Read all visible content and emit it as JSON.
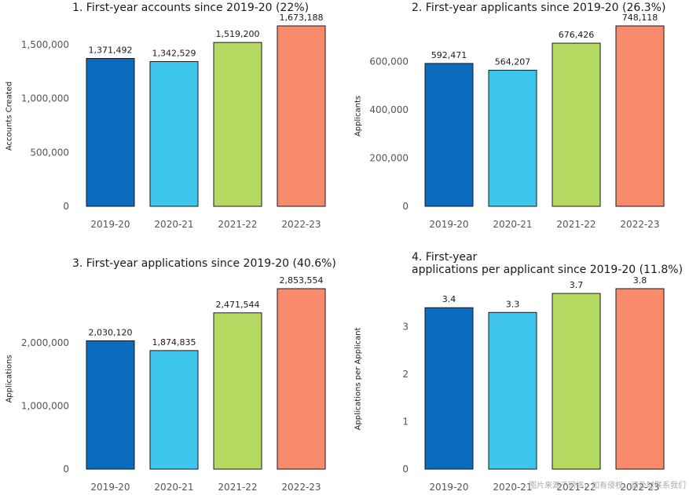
{
  "colors": [
    "#0b6bbf",
    "#3ec5ec",
    "#b5da62",
    "#f98a6c"
  ],
  "watermark": "图片来源于网络，如有侵权，请及时联系我们",
  "chart_data": [
    {
      "type": "bar",
      "title": "1. First-year accounts since 2019-20 (22%)",
      "ylabel": "Accounts Created",
      "categories": [
        "2019-20",
        "2020-21",
        "2021-22",
        "2022-23"
      ],
      "values": [
        1371492,
        1342529,
        1519200,
        1673188
      ],
      "value_labels": [
        "1,371,492",
        "1,342,529",
        "1,519,200",
        "1,673,188"
      ],
      "yticks": [
        0,
        500000,
        1000000,
        1500000
      ],
      "ytick_labels": [
        "0",
        "500,000",
        "1,000,000",
        "1,500,000"
      ],
      "ylim": [
        0,
        1673188
      ]
    },
    {
      "type": "bar",
      "title": "2. First-year applicants since 2019-20 (26.3%)",
      "ylabel": "Applicants",
      "categories": [
        "2019-20",
        "2020-21",
        "2021-22",
        "2022-23"
      ],
      "values": [
        592471,
        564207,
        676426,
        748118
      ],
      "value_labels": [
        "592,471",
        "564,207",
        "676,426",
        "748,118"
      ],
      "yticks": [
        0,
        200000,
        400000,
        600000
      ],
      "ytick_labels": [
        "0",
        "200,000",
        "400,000",
        "600,000"
      ],
      "ylim": [
        0,
        748118
      ]
    },
    {
      "type": "bar",
      "title": "3. First-year applications since 2019-20 (40.6%)",
      "ylabel": "Applications",
      "categories": [
        "2019-20",
        "2020-21",
        "2021-22",
        "2022-23"
      ],
      "values": [
        2030120,
        1874835,
        2471544,
        2853554
      ],
      "value_labels": [
        "2,030,120",
        "1,874,835",
        "2,471,544",
        "2,853,554"
      ],
      "yticks": [
        0,
        1000000,
        2000000
      ],
      "ytick_labels": [
        "0",
        "1,000,000",
        "2,000,000"
      ],
      "ylim": [
        0,
        2853554
      ]
    },
    {
      "type": "bar",
      "title": "4. First-year\napplications per applicant since 2019-20 (11.8%)",
      "ylabel": "Applications per Applicant",
      "categories": [
        "2019-20",
        "2020-21",
        "2021-22",
        "2022-23"
      ],
      "values": [
        3.4,
        3.3,
        3.7,
        3.8
      ],
      "value_labels": [
        "3.4",
        "3.3",
        "3.7",
        "3.8"
      ],
      "yticks": [
        0,
        1,
        2,
        3
      ],
      "ytick_labels": [
        "0",
        "1",
        "2",
        "3"
      ],
      "ylim": [
        0,
        3.8
      ]
    }
  ]
}
